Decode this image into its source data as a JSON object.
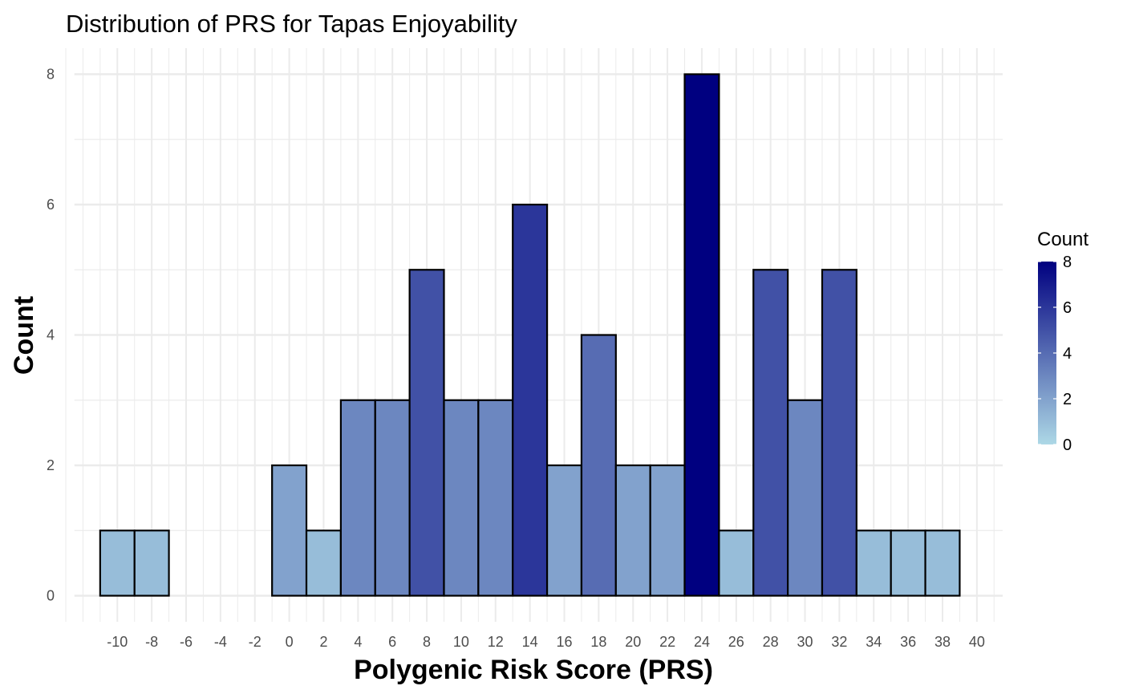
{
  "chart_data": {
    "type": "bar",
    "title": "Distribution of PRS for Tapas Enjoyability",
    "xlabel": "Polygenic Risk Score (PRS)",
    "ylabel": "Count",
    "bin_width": 2,
    "x_ticks": [
      -10,
      -8,
      -6,
      -4,
      -2,
      0,
      2,
      4,
      6,
      8,
      10,
      12,
      14,
      16,
      18,
      20,
      22,
      24,
      26,
      28,
      30,
      32,
      34,
      36,
      38,
      40
    ],
    "y_ticks": [
      0,
      2,
      4,
      6,
      8
    ],
    "bins": [
      {
        "center": -10,
        "count": 1
      },
      {
        "center": -8,
        "count": 1
      },
      {
        "center": -6,
        "count": 0
      },
      {
        "center": -4,
        "count": 0
      },
      {
        "center": -2,
        "count": 0
      },
      {
        "center": 0,
        "count": 2
      },
      {
        "center": 2,
        "count": 1
      },
      {
        "center": 4,
        "count": 3
      },
      {
        "center": 6,
        "count": 3
      },
      {
        "center": 8,
        "count": 5
      },
      {
        "center": 10,
        "count": 3
      },
      {
        "center": 12,
        "count": 3
      },
      {
        "center": 14,
        "count": 6
      },
      {
        "center": 16,
        "count": 2
      },
      {
        "center": 18,
        "count": 4
      },
      {
        "center": 20,
        "count": 2
      },
      {
        "center": 22,
        "count": 2
      },
      {
        "center": 24,
        "count": 8
      },
      {
        "center": 26,
        "count": 1
      },
      {
        "center": 28,
        "count": 5
      },
      {
        "center": 30,
        "count": 3
      },
      {
        "center": 32,
        "count": 5
      },
      {
        "center": 34,
        "count": 1
      },
      {
        "center": 36,
        "count": 1
      },
      {
        "center": 38,
        "count": 1
      }
    ],
    "xlim": [
      -13,
      41.5
    ],
    "ylim": [
      -0.4,
      8.4
    ],
    "grid": true,
    "legend": {
      "title": "Count",
      "ticks": [
        0,
        2,
        4,
        6,
        8
      ],
      "placement": "right",
      "gradient_low": "#add8e6",
      "gradient_high": "#000080"
    },
    "colors": {
      "fill_low": "#add8e6",
      "fill_high": "#000080",
      "outline": "#000000"
    }
  }
}
